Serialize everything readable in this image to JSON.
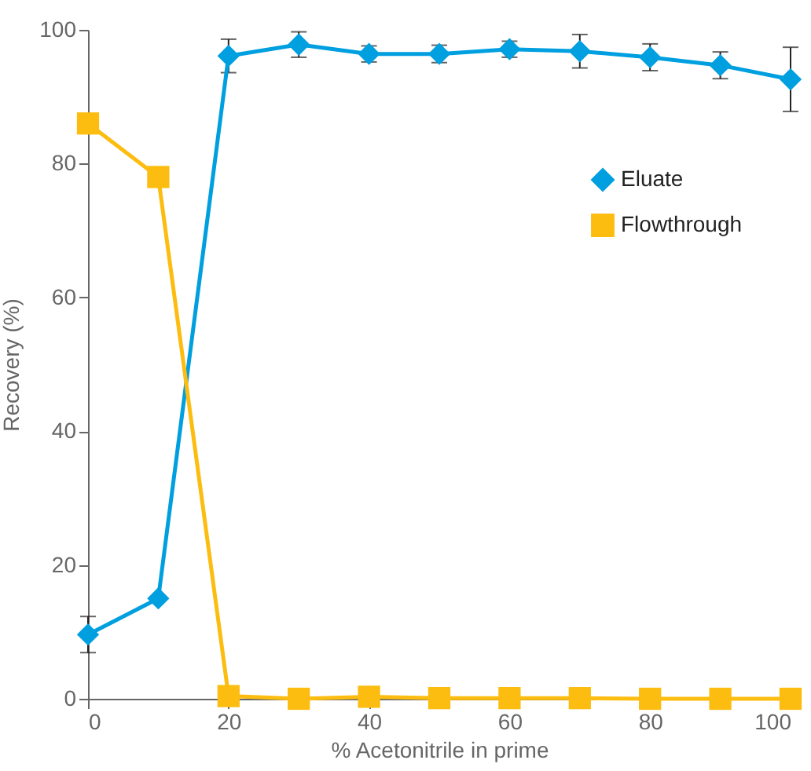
{
  "chart_data": {
    "type": "line",
    "xlabel": "% Acetonitrile in prime",
    "ylabel": "Recovery (%)",
    "x": [
      0,
      10,
      20,
      30,
      40,
      50,
      60,
      70,
      80,
      90,
      100
    ],
    "xlim": [
      0,
      100
    ],
    "xticks": [
      0,
      20,
      40,
      60,
      80,
      100
    ],
    "ylim": [
      0,
      100
    ],
    "yticks": [
      0,
      20,
      40,
      60,
      80,
      100
    ],
    "grid": false,
    "legend": "top right",
    "series": [
      {
        "name": "Eluate",
        "color": "#009fdf",
        "marker": "diamond",
        "values": [
          9.6,
          15.0,
          96.1,
          97.8,
          96.4,
          96.4,
          97.1,
          96.8,
          95.9,
          94.7,
          92.6
        ],
        "errors": [
          2.7,
          null,
          2.5,
          1.9,
          1.2,
          1.3,
          1.2,
          2.5,
          2.0,
          2.0,
          4.8
        ]
      },
      {
        "name": "Flowthrough",
        "color": "#fcbd10",
        "marker": "square",
        "values": [
          86,
          78,
          0.4,
          0,
          0.3,
          0.1,
          0.1,
          0.1,
          0,
          0,
          0
        ]
      }
    ]
  }
}
